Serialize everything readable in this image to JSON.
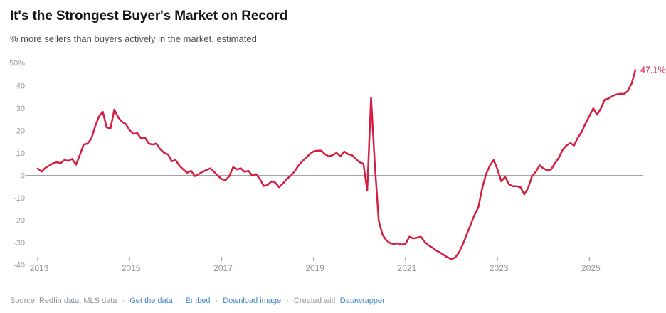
{
  "header": {
    "title": "It's the Strongest Buyer's Market on Record",
    "subtitle": "% more sellers than buyers actively in the market, estimated"
  },
  "footer": {
    "source": "Source: Redfin data, MLS data",
    "separator": "·",
    "get_the_data": "Get the data",
    "embed": "Embed",
    "download_image": "Download image",
    "created_with": "Created with",
    "datawrapper": "Datawrapper"
  },
  "chart_data": {
    "type": "line",
    "title": "It's the Strongest Buyer's Market on Record",
    "subtitle": "% more sellers than buyers actively in the market, estimated",
    "unit": "%",
    "start": "2013-01",
    "frequency": "monthly",
    "ylim": [
      -40,
      50
    ],
    "grid": "zero-line-only",
    "legend": "none",
    "y_axis": {
      "values": [
        50,
        40,
        30,
        20,
        10,
        0,
        -10,
        -20,
        -30,
        -40
      ],
      "labels": [
        "50%",
        "40",
        "30",
        "20",
        "10",
        "0",
        "-10",
        "-20",
        "-30",
        "-40"
      ]
    },
    "x_axis": {
      "years": [
        2013,
        2015,
        2017,
        2019,
        2021,
        2023,
        2025
      ]
    },
    "series": [
      {
        "name": "% more sellers than buyers",
        "values": [
          3.2,
          1.8,
          3.5,
          4.5,
          5.5,
          6.0,
          5.6,
          7.0,
          6.6,
          7.5,
          4.9,
          9.2,
          13.9,
          14.3,
          16.5,
          22.0,
          26.5,
          28.5,
          21.5,
          21.0,
          29.5,
          26.0,
          24.0,
          23.0,
          20.3,
          18.6,
          19.0,
          16.5,
          17.0,
          14.3,
          13.9,
          14.3,
          11.8,
          10.2,
          9.5,
          6.4,
          7.0,
          4.4,
          2.8,
          1.3,
          2.2,
          -0.2,
          0.7,
          1.7,
          2.5,
          3.3,
          1.8,
          0.0,
          -1.5,
          -2.0,
          -0.3,
          3.8,
          2.8,
          3.3,
          1.7,
          2.2,
          0.0,
          0.7,
          -1.5,
          -4.6,
          -4.1,
          -2.5,
          -3.0,
          -5.1,
          -3.5,
          -1.5,
          0.0,
          1.8,
          4.4,
          6.3,
          8.0,
          9.6,
          10.8,
          11.2,
          11.2,
          9.6,
          8.6,
          9.2,
          10.2,
          8.6,
          10.8,
          9.6,
          9.2,
          7.6,
          6.0,
          5.4,
          -6.6,
          34.8,
          5.0,
          -20.0,
          -26.3,
          -28.8,
          -30.1,
          -30.4,
          -30.1,
          -30.7,
          -30.4,
          -27.2,
          -27.9,
          -27.6,
          -27.2,
          -29.4,
          -31.0,
          -32.0,
          -33.3,
          -34.2,
          -35.3,
          -36.4,
          -37.2,
          -36.4,
          -34.0,
          -30.4,
          -26.0,
          -21.7,
          -17.5,
          -14.2,
          -5.7,
          0.6,
          4.5,
          7.0,
          2.8,
          -2.5,
          -0.5,
          -3.8,
          -4.7,
          -4.7,
          -5.1,
          -8.3,
          -5.5,
          -0.3,
          1.7,
          4.7,
          3.2,
          2.4,
          2.8,
          5.5,
          8.0,
          11.5,
          13.5,
          14.5,
          13.5,
          17.0,
          19.5,
          23.4,
          26.6,
          30.0,
          27.2,
          30.0,
          33.9,
          34.4,
          35.5,
          36.2,
          36.5,
          36.4,
          37.7,
          41.0,
          47.1
        ]
      }
    ],
    "end_label": "47.1%",
    "last_value": 47.1,
    "colors": {
      "line": "#d51e40",
      "end_label": "#d51e40",
      "zero_line": "#a3a3a3",
      "axis_text": "#9b9b9b",
      "tick_mark": "#ababab",
      "footer_text": "#8e959b",
      "link": "#3d87cb"
    }
  }
}
